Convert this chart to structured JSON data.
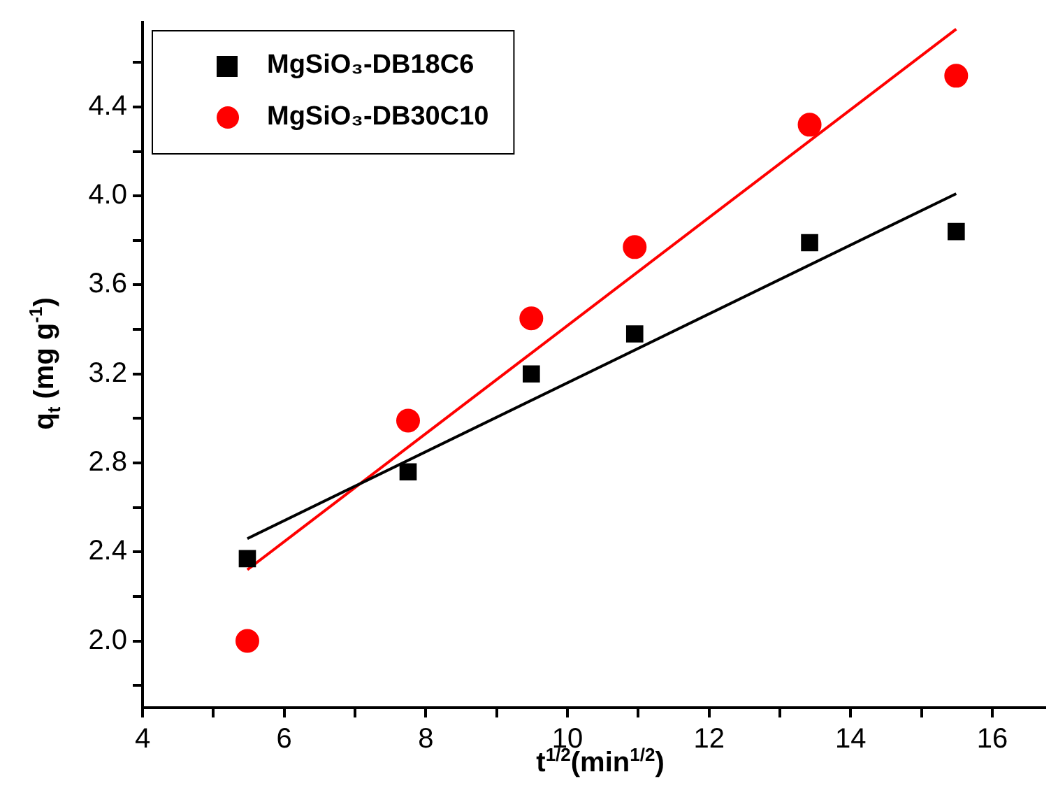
{
  "chart_data": {
    "type": "scatter",
    "xlabel": "t$^{1/2}$(min$^{1/2}$)",
    "ylabel": "q$_{t}$ (mg g$^{-1}$)",
    "xlim": [
      4,
      16.75
    ],
    "ylim": [
      1.7,
      4.78
    ],
    "xticks": [
      4,
      {
        "value": 5,
        "label": null
      },
      6,
      {
        "value": 7,
        "label": null
      },
      8,
      {
        "value": 9,
        "label": null
      },
      10,
      {
        "value": 11,
        "label": null
      },
      12,
      {
        "value": 13,
        "label": null
      },
      14,
      {
        "value": 15,
        "label": null
      },
      16
    ],
    "yticks": [
      {
        "value": 1.8,
        "label": null
      },
      {
        "value": 2.0,
        "label": "2.0"
      },
      {
        "value": 2.2,
        "label": null
      },
      2.4,
      {
        "value": 2.6,
        "label": null
      },
      2.8,
      {
        "value": 3.0,
        "label": null
      },
      3.2,
      {
        "value": 3.4,
        "label": null
      },
      3.6,
      {
        "value": 3.8,
        "label": null
      },
      {
        "value": 4.0,
        "label": "4.0"
      },
      {
        "value": 4.2,
        "label": null
      },
      4.4,
      {
        "value": 4.6,
        "label": null
      }
    ],
    "grid": false,
    "legend": "top left",
    "series": [
      {
        "name": "MgSiO₃-DB18C6",
        "type": "scatter",
        "marker": "square",
        "color": "#000000",
        "x": [
          5.48,
          7.75,
          9.49,
          10.95,
          13.42,
          15.49
        ],
        "values": [
          2.37,
          2.76,
          3.2,
          3.38,
          3.79,
          3.84
        ]
      },
      {
        "name": "MgSiO₃-DB30C10",
        "type": "scatter",
        "marker": "circle",
        "color": "#ff0000",
        "x": [
          5.48,
          7.75,
          9.49,
          10.95,
          13.42,
          15.49
        ],
        "values": [
          2.0,
          2.99,
          3.45,
          3.77,
          4.32,
          4.54
        ]
      },
      {
        "type": "line",
        "marker": "none",
        "color": "#000000",
        "x": [
          5.48,
          15.49
        ],
        "values": [
          2.46,
          4.01
        ]
      },
      {
        "type": "line",
        "marker": "none",
        "color": "#ff0000",
        "x": [
          5.48,
          15.49
        ],
        "values": [
          2.32,
          4.75
        ]
      }
    ]
  }
}
